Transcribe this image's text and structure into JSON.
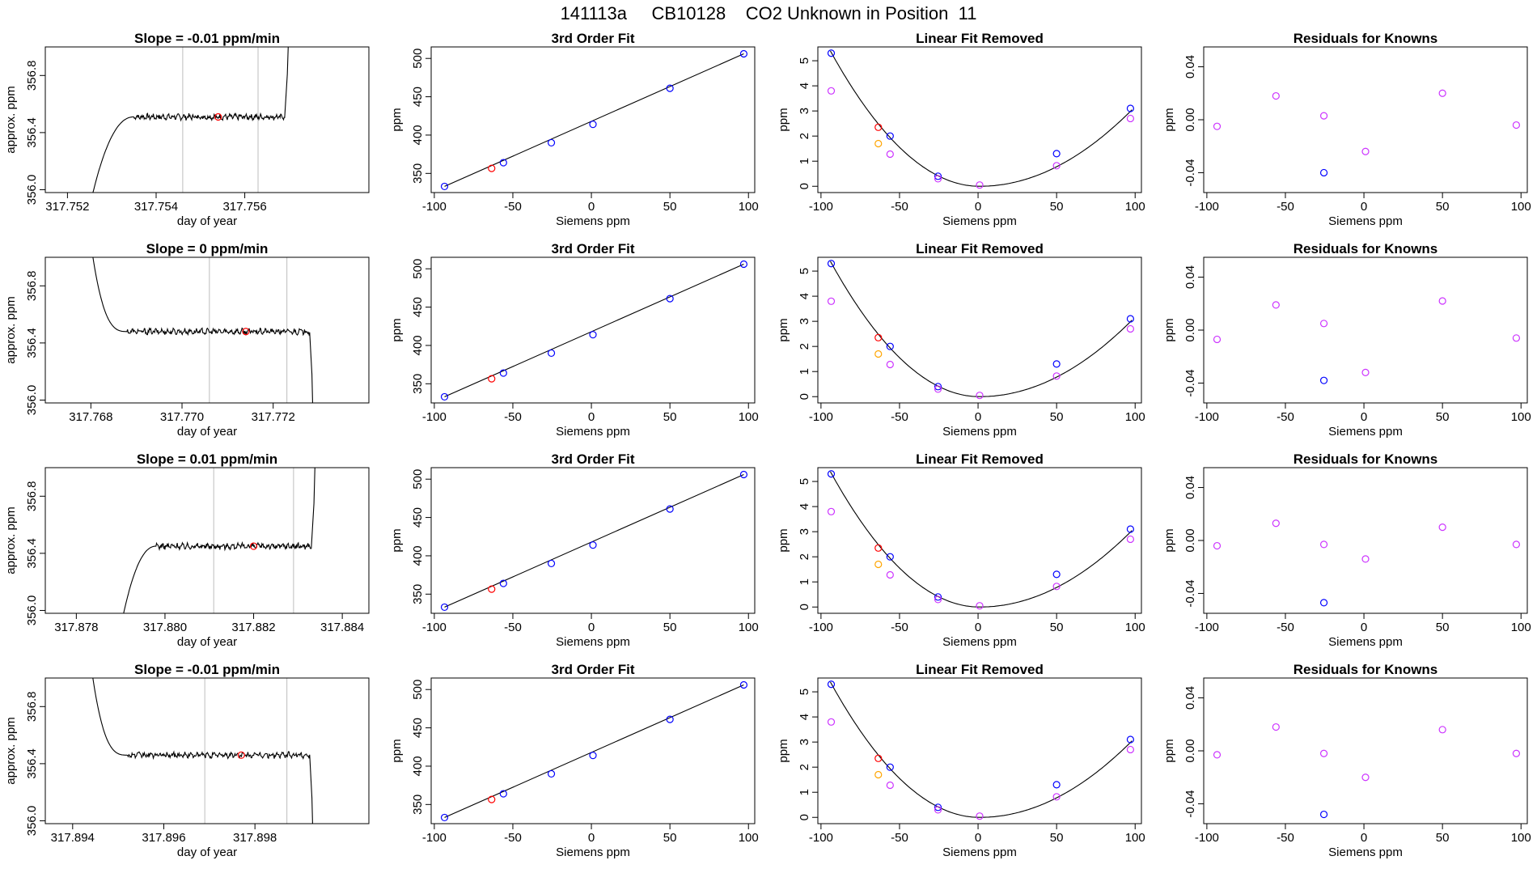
{
  "title": "141113a     CB10128    CO2 Unknown in Position  11",
  "colors": {
    "axis": "#000000",
    "line": "#000000",
    "vline": "#c8c8c8",
    "red": "#ff0000",
    "blue": "#0000ff",
    "magenta": "#cc33ff",
    "orange": "#ffa500"
  },
  "chart_data": [
    {
      "type": "line",
      "row": 0,
      "col": 0,
      "title": "Slope =  -0.01  ppm/min",
      "xlabel": "day of year",
      "ylabel": "approx. ppm",
      "xlim": [
        317.7515,
        317.7588
      ],
      "ylim": [
        355.98,
        357.0
      ],
      "xticks": [
        "317.752",
        "317.754",
        "317.756"
      ],
      "yticks": [
        "356.0",
        "356.4",
        "356.8"
      ],
      "shape": "rise",
      "trace": {
        "start": 317.7525,
        "rise_end": 317.7535,
        "plateau": 356.51,
        "end": 317.7569
      },
      "vlines": [
        317.7546,
        317.7563
      ],
      "marker": {
        "x": 317.7554,
        "y": 356.51,
        "color": "red"
      }
    },
    {
      "type": "line",
      "row": 1,
      "col": 0,
      "title": "Slope =  0  ppm/min",
      "xlabel": "day of year",
      "ylabel": "approx. ppm",
      "xlim": [
        317.767,
        317.7741
      ],
      "ylim": [
        355.98,
        357.0
      ],
      "xticks": [
        "317.768",
        "317.770",
        "317.772"
      ],
      "yticks": [
        "356.0",
        "356.4",
        "356.8"
      ],
      "shape": "fall",
      "trace": {
        "start": 317.768,
        "fall_end": 317.7688,
        "plateau": 356.48,
        "end": 317.7728
      },
      "vlines": [
        317.7706,
        317.7723
      ],
      "marker": {
        "x": 317.7714,
        "y": 356.48,
        "color": "red"
      }
    },
    {
      "type": "line",
      "row": 2,
      "col": 0,
      "title": "Slope =  0.01  ppm/min",
      "xlabel": "day of year",
      "ylabel": "approx. ppm",
      "xlim": [
        317.8773,
        317.8846
      ],
      "ylim": [
        355.98,
        357.0
      ],
      "xticks": [
        "317.878",
        "317.880",
        "317.882",
        "317.884"
      ],
      "yticks": [
        "356.0",
        "356.4",
        "356.8"
      ],
      "shape": "rise",
      "trace": {
        "start": 317.879,
        "rise_end": 317.8798,
        "plateau": 356.45,
        "end": 317.8833
      },
      "vlines": [
        317.8811,
        317.8829
      ],
      "marker": {
        "x": 317.882,
        "y": 356.45,
        "color": "red"
      }
    },
    {
      "type": "line",
      "row": 3,
      "col": 0,
      "title": "Slope =  -0.01  ppm/min",
      "xlabel": "day of year",
      "ylabel": "approx. ppm",
      "xlim": [
        317.8934,
        317.9005
      ],
      "ylim": [
        355.98,
        357.0
      ],
      "xticks": [
        "317.894",
        "317.896",
        "317.898"
      ],
      "yticks": [
        "356.0",
        "356.4",
        "356.8"
      ],
      "shape": "fall",
      "trace": {
        "start": 317.8944,
        "fall_end": 317.8952,
        "plateau": 356.46,
        "end": 317.8992
      },
      "vlines": [
        317.8969,
        317.8987
      ],
      "marker": {
        "x": 317.8977,
        "y": 356.46,
        "color": "red"
      }
    },
    {
      "type": "scatter",
      "row": 0,
      "col": 1,
      "title": "3rd Order Fit",
      "xlabel": "Siemens ppm",
      "ylabel": "ppm",
      "xlim": [
        -102,
        104
      ],
      "ylim": [
        325,
        515
      ],
      "xticks": [
        -100,
        -50,
        0,
        50,
        100
      ],
      "yticks": [
        350,
        400,
        450,
        500
      ],
      "fit_line": {
        "from": [
          -93.5,
          333
        ],
        "to": [
          97,
          506
        ]
      },
      "points": [
        {
          "x": -93.5,
          "y": 333,
          "c": "blue"
        },
        {
          "x": -63.5,
          "y": 356.5,
          "c": "red"
        },
        {
          "x": -56,
          "y": 364,
          "c": "blue"
        },
        {
          "x": -25.5,
          "y": 390,
          "c": "blue"
        },
        {
          "x": 1,
          "y": 414,
          "c": "blue"
        },
        {
          "x": 50,
          "y": 461,
          "c": "blue"
        },
        {
          "x": 97,
          "y": 506,
          "c": "blue"
        }
      ]
    },
    {
      "type": "scatter",
      "row": 1,
      "col": 1,
      "title": "3rd Order Fit",
      "xlabel": "Siemens ppm",
      "ylabel": "ppm",
      "xlim": [
        -102,
        104
      ],
      "ylim": [
        325,
        515
      ],
      "xticks": [
        -100,
        -50,
        0,
        50,
        100
      ],
      "yticks": [
        350,
        400,
        450,
        500
      ],
      "fit_line": {
        "from": [
          -93.5,
          333
        ],
        "to": [
          97,
          506
        ]
      },
      "points": [
        {
          "x": -93.5,
          "y": 333,
          "c": "blue"
        },
        {
          "x": -63.5,
          "y": 356.5,
          "c": "red"
        },
        {
          "x": -56,
          "y": 364,
          "c": "blue"
        },
        {
          "x": -25.5,
          "y": 390,
          "c": "blue"
        },
        {
          "x": 1,
          "y": 414,
          "c": "blue"
        },
        {
          "x": 50,
          "y": 461,
          "c": "blue"
        },
        {
          "x": 97,
          "y": 506,
          "c": "blue"
        }
      ]
    },
    {
      "type": "scatter",
      "row": 2,
      "col": 1,
      "title": "3rd Order Fit",
      "xlabel": "Siemens ppm",
      "ylabel": "ppm",
      "xlim": [
        -102,
        104
      ],
      "ylim": [
        325,
        515
      ],
      "xticks": [
        -100,
        -50,
        0,
        50,
        100
      ],
      "yticks": [
        350,
        400,
        450,
        500
      ],
      "fit_line": {
        "from": [
          -93.5,
          333
        ],
        "to": [
          97,
          506
        ]
      },
      "points": [
        {
          "x": -93.5,
          "y": 333,
          "c": "blue"
        },
        {
          "x": -63.5,
          "y": 356.5,
          "c": "red"
        },
        {
          "x": -56,
          "y": 364,
          "c": "blue"
        },
        {
          "x": -25.5,
          "y": 390,
          "c": "blue"
        },
        {
          "x": 1,
          "y": 414,
          "c": "blue"
        },
        {
          "x": 50,
          "y": 461,
          "c": "blue"
        },
        {
          "x": 97,
          "y": 506,
          "c": "blue"
        }
      ]
    },
    {
      "type": "scatter",
      "row": 3,
      "col": 1,
      "title": "3rd Order Fit",
      "xlabel": "Siemens ppm",
      "ylabel": "ppm",
      "xlim": [
        -102,
        104
      ],
      "ylim": [
        325,
        515
      ],
      "xticks": [
        -100,
        -50,
        0,
        50,
        100
      ],
      "yticks": [
        350,
        400,
        450,
        500
      ],
      "fit_line": {
        "from": [
          -93.5,
          333
        ],
        "to": [
          97,
          506
        ]
      },
      "points": [
        {
          "x": -93.5,
          "y": 333,
          "c": "blue"
        },
        {
          "x": -63.5,
          "y": 356.5,
          "c": "red"
        },
        {
          "x": -56,
          "y": 364,
          "c": "blue"
        },
        {
          "x": -25.5,
          "y": 390,
          "c": "blue"
        },
        {
          "x": 1,
          "y": 414,
          "c": "blue"
        },
        {
          "x": 50,
          "y": 461,
          "c": "blue"
        },
        {
          "x": 97,
          "y": 506,
          "c": "blue"
        }
      ]
    },
    {
      "type": "scatter",
      "row": 0,
      "col": 2,
      "title": "Linear Fit Removed",
      "xlabel": "Siemens ppm",
      "ylabel": "ppm",
      "xlim": [
        -102,
        104
      ],
      "ylim": [
        -0.25,
        5.55
      ],
      "xticks": [
        -100,
        -50,
        0,
        50,
        100
      ],
      "yticks": [
        0,
        1,
        2,
        3,
        4,
        5
      ],
      "curve": {
        "vertex": [
          1,
          0
        ],
        "a_left": 0.000597,
        "a_right": 0.000324,
        "from": -94,
        "to": 98
      },
      "points": [
        {
          "x": -93.5,
          "y": 5.3,
          "c": "blue"
        },
        {
          "x": -93.5,
          "y": 3.8,
          "c": "magenta"
        },
        {
          "x": -63.5,
          "y": 2.35,
          "c": "red"
        },
        {
          "x": -63.5,
          "y": 1.7,
          "c": "orange"
        },
        {
          "x": -56,
          "y": 2.0,
          "c": "blue"
        },
        {
          "x": -56,
          "y": 1.28,
          "c": "magenta"
        },
        {
          "x": -25.5,
          "y": 0.4,
          "c": "blue"
        },
        {
          "x": -25.5,
          "y": 0.3,
          "c": "magenta"
        },
        {
          "x": 1,
          "y": 0.05,
          "c": "magenta"
        },
        {
          "x": 50,
          "y": 1.3,
          "c": "blue"
        },
        {
          "x": 50,
          "y": 0.82,
          "c": "magenta"
        },
        {
          "x": 97,
          "y": 3.1,
          "c": "blue"
        },
        {
          "x": 97,
          "y": 2.7,
          "c": "magenta"
        }
      ]
    },
    {
      "type": "scatter",
      "row": 1,
      "col": 2,
      "title": "Linear Fit Removed",
      "xlabel": "Siemens ppm",
      "ylabel": "ppm",
      "xlim": [
        -102,
        104
      ],
      "ylim": [
        -0.25,
        5.55
      ],
      "xticks": [
        -100,
        -50,
        0,
        50,
        100
      ],
      "yticks": [
        0,
        1,
        2,
        3,
        4,
        5
      ],
      "curve": {
        "vertex": [
          1,
          0
        ],
        "a_left": 0.000597,
        "a_right": 0.000324,
        "from": -94,
        "to": 98
      },
      "points": [
        {
          "x": -93.5,
          "y": 5.3,
          "c": "blue"
        },
        {
          "x": -93.5,
          "y": 3.8,
          "c": "magenta"
        },
        {
          "x": -63.5,
          "y": 2.35,
          "c": "red"
        },
        {
          "x": -63.5,
          "y": 1.7,
          "c": "orange"
        },
        {
          "x": -56,
          "y": 2.0,
          "c": "blue"
        },
        {
          "x": -56,
          "y": 1.28,
          "c": "magenta"
        },
        {
          "x": -25.5,
          "y": 0.4,
          "c": "blue"
        },
        {
          "x": -25.5,
          "y": 0.3,
          "c": "magenta"
        },
        {
          "x": 1,
          "y": 0.05,
          "c": "magenta"
        },
        {
          "x": 50,
          "y": 1.3,
          "c": "blue"
        },
        {
          "x": 50,
          "y": 0.82,
          "c": "magenta"
        },
        {
          "x": 97,
          "y": 3.1,
          "c": "blue"
        },
        {
          "x": 97,
          "y": 2.7,
          "c": "magenta"
        }
      ]
    },
    {
      "type": "scatter",
      "row": 2,
      "col": 2,
      "title": "Linear Fit Removed",
      "xlabel": "Siemens ppm",
      "ylabel": "ppm",
      "xlim": [
        -102,
        104
      ],
      "ylim": [
        -0.25,
        5.55
      ],
      "xticks": [
        -100,
        -50,
        0,
        50,
        100
      ],
      "yticks": [
        0,
        1,
        2,
        3,
        4,
        5
      ],
      "curve": {
        "vertex": [
          1,
          0
        ],
        "a_left": 0.000597,
        "a_right": 0.000324,
        "from": -94,
        "to": 98
      },
      "points": [
        {
          "x": -93.5,
          "y": 5.3,
          "c": "blue"
        },
        {
          "x": -93.5,
          "y": 3.8,
          "c": "magenta"
        },
        {
          "x": -63.5,
          "y": 2.35,
          "c": "red"
        },
        {
          "x": -63.5,
          "y": 1.7,
          "c": "orange"
        },
        {
          "x": -56,
          "y": 2.0,
          "c": "blue"
        },
        {
          "x": -56,
          "y": 1.28,
          "c": "magenta"
        },
        {
          "x": -25.5,
          "y": 0.4,
          "c": "blue"
        },
        {
          "x": -25.5,
          "y": 0.3,
          "c": "magenta"
        },
        {
          "x": 1,
          "y": 0.05,
          "c": "magenta"
        },
        {
          "x": 50,
          "y": 1.3,
          "c": "blue"
        },
        {
          "x": 50,
          "y": 0.82,
          "c": "magenta"
        },
        {
          "x": 97,
          "y": 3.1,
          "c": "blue"
        },
        {
          "x": 97,
          "y": 2.7,
          "c": "magenta"
        }
      ]
    },
    {
      "type": "scatter",
      "row": 3,
      "col": 2,
      "title": "Linear Fit Removed",
      "xlabel": "Siemens ppm",
      "ylabel": "ppm",
      "xlim": [
        -102,
        104
      ],
      "ylim": [
        -0.25,
        5.55
      ],
      "xticks": [
        -100,
        -50,
        0,
        50,
        100
      ],
      "yticks": [
        0,
        1,
        2,
        3,
        4,
        5
      ],
      "curve": {
        "vertex": [
          1,
          0
        ],
        "a_left": 0.000597,
        "a_right": 0.000324,
        "from": -94,
        "to": 98
      },
      "points": [
        {
          "x": -93.5,
          "y": 5.3,
          "c": "blue"
        },
        {
          "x": -93.5,
          "y": 3.8,
          "c": "magenta"
        },
        {
          "x": -63.5,
          "y": 2.35,
          "c": "red"
        },
        {
          "x": -63.5,
          "y": 1.7,
          "c": "orange"
        },
        {
          "x": -56,
          "y": 2.0,
          "c": "blue"
        },
        {
          "x": -56,
          "y": 1.28,
          "c": "magenta"
        },
        {
          "x": -25.5,
          "y": 0.4,
          "c": "blue"
        },
        {
          "x": -25.5,
          "y": 0.3,
          "c": "magenta"
        },
        {
          "x": 1,
          "y": 0.05,
          "c": "magenta"
        },
        {
          "x": 50,
          "y": 1.3,
          "c": "blue"
        },
        {
          "x": 50,
          "y": 0.82,
          "c": "magenta"
        },
        {
          "x": 97,
          "y": 3.1,
          "c": "blue"
        },
        {
          "x": 97,
          "y": 2.7,
          "c": "magenta"
        }
      ]
    },
    {
      "type": "scatter",
      "row": 0,
      "col": 3,
      "title": "Residuals for Knowns",
      "xlabel": "Siemens ppm",
      "ylabel": "ppm",
      "xlim": [
        -102,
        104
      ],
      "ylim": [
        -0.055,
        0.055
      ],
      "xticks": [
        -100,
        -50,
        0,
        50,
        100
      ],
      "yticks": [
        "-0.04",
        "0.00",
        "0.04"
      ],
      "points": [
        {
          "x": -93.5,
          "y": -0.005,
          "c": "magenta"
        },
        {
          "x": -56,
          "y": 0.018,
          "c": "magenta"
        },
        {
          "x": -25.5,
          "y": 0.003,
          "c": "magenta"
        },
        {
          "x": -25.5,
          "y": -0.04,
          "c": "blue"
        },
        {
          "x": 1,
          "y": -0.024,
          "c": "magenta"
        },
        {
          "x": 50,
          "y": 0.02,
          "c": "magenta"
        },
        {
          "x": 97,
          "y": -0.004,
          "c": "magenta"
        }
      ]
    },
    {
      "type": "scatter",
      "row": 1,
      "col": 3,
      "title": "Residuals for Knowns",
      "xlabel": "Siemens ppm",
      "ylabel": "ppm",
      "xlim": [
        -102,
        104
      ],
      "ylim": [
        -0.055,
        0.055
      ],
      "xticks": [
        -100,
        -50,
        0,
        50,
        100
      ],
      "yticks": [
        "-0.04",
        "0.00",
        "0.04"
      ],
      "points": [
        {
          "x": -93.5,
          "y": -0.007,
          "c": "magenta"
        },
        {
          "x": -56,
          "y": 0.019,
          "c": "magenta"
        },
        {
          "x": -25.5,
          "y": 0.005,
          "c": "magenta"
        },
        {
          "x": -25.5,
          "y": -0.038,
          "c": "blue"
        },
        {
          "x": 1,
          "y": -0.032,
          "c": "magenta"
        },
        {
          "x": 50,
          "y": 0.022,
          "c": "magenta"
        },
        {
          "x": 97,
          "y": -0.006,
          "c": "magenta"
        }
      ]
    },
    {
      "type": "scatter",
      "row": 2,
      "col": 3,
      "title": "Residuals for Knowns",
      "xlabel": "Siemens ppm",
      "ylabel": "ppm",
      "xlim": [
        -102,
        104
      ],
      "ylim": [
        -0.055,
        0.055
      ],
      "xticks": [
        -100,
        -50,
        0,
        50,
        100
      ],
      "yticks": [
        "-0.04",
        "0.00",
        "0.04"
      ],
      "points": [
        {
          "x": -93.5,
          "y": -0.004,
          "c": "magenta"
        },
        {
          "x": -56,
          "y": 0.013,
          "c": "magenta"
        },
        {
          "x": -25.5,
          "y": -0.003,
          "c": "magenta"
        },
        {
          "x": -25.5,
          "y": -0.047,
          "c": "blue"
        },
        {
          "x": 1,
          "y": -0.014,
          "c": "magenta"
        },
        {
          "x": 50,
          "y": 0.01,
          "c": "magenta"
        },
        {
          "x": 97,
          "y": -0.003,
          "c": "magenta"
        }
      ]
    },
    {
      "type": "scatter",
      "row": 3,
      "col": 3,
      "title": "Residuals for Knowns",
      "xlabel": "Siemens ppm",
      "ylabel": "ppm",
      "xlim": [
        -102,
        104
      ],
      "ylim": [
        -0.055,
        0.055
      ],
      "xticks": [
        -100,
        -50,
        0,
        50,
        100
      ],
      "yticks": [
        "-0.04",
        "0.00",
        "0.04"
      ],
      "points": [
        {
          "x": -93.5,
          "y": -0.003,
          "c": "magenta"
        },
        {
          "x": -56,
          "y": 0.018,
          "c": "magenta"
        },
        {
          "x": -25.5,
          "y": -0.002,
          "c": "magenta"
        },
        {
          "x": -25.5,
          "y": -0.048,
          "c": "blue"
        },
        {
          "x": 1,
          "y": -0.02,
          "c": "magenta"
        },
        {
          "x": 50,
          "y": 0.016,
          "c": "magenta"
        },
        {
          "x": 97,
          "y": -0.002,
          "c": "magenta"
        }
      ]
    }
  ]
}
